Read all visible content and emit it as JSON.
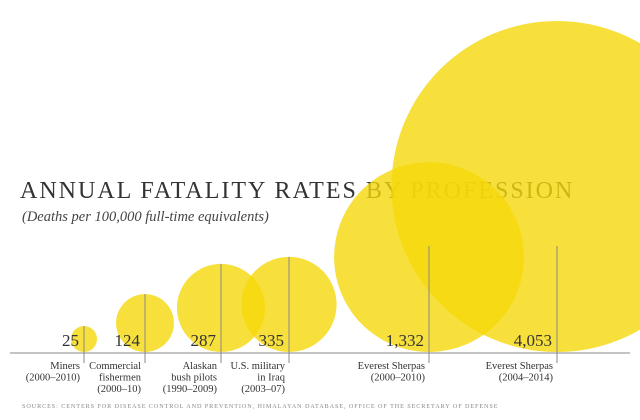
{
  "title": "ANNUAL FATALITY RATES BY PROFESSION",
  "subtitle": "(Deaths per 100,000 full-time equivalents)",
  "source": "SOURCES: CENTERS FOR DISEASE CONTROL AND PREVENTION, HIMALAYAN DATABASE, OFFICE OF THE SECRETARY OF DEFENSE",
  "colors": {
    "bubble": "#f5d80a",
    "text": "#333333",
    "rule": "#888888"
  },
  "chart_data": {
    "type": "bubble",
    "title": "ANNUAL FATALITY RATES BY PROFESSION",
    "subtitle": "(Deaths per 100,000 full-time equivalents)",
    "categories": [
      [
        "Miners",
        "(2000–2010)"
      ],
      [
        "Commercial",
        "fishermen",
        "(2000–10)"
      ],
      [
        "Alaskan",
        "bush pilots",
        "(1990–2009)"
      ],
      [
        "U.S. military",
        "in Iraq",
        "(2003–07)"
      ],
      [
        "Everest Sherpas",
        "(2000–2010)"
      ],
      [
        "Everest Sherpas",
        "(2004–2014)"
      ]
    ],
    "value_labels": [
      "25",
      "124",
      "287",
      "335",
      "1,332",
      "4,053"
    ],
    "values": [
      25,
      124,
      287,
      335,
      1332,
      4053
    ],
    "legend": "none",
    "grid": false
  }
}
